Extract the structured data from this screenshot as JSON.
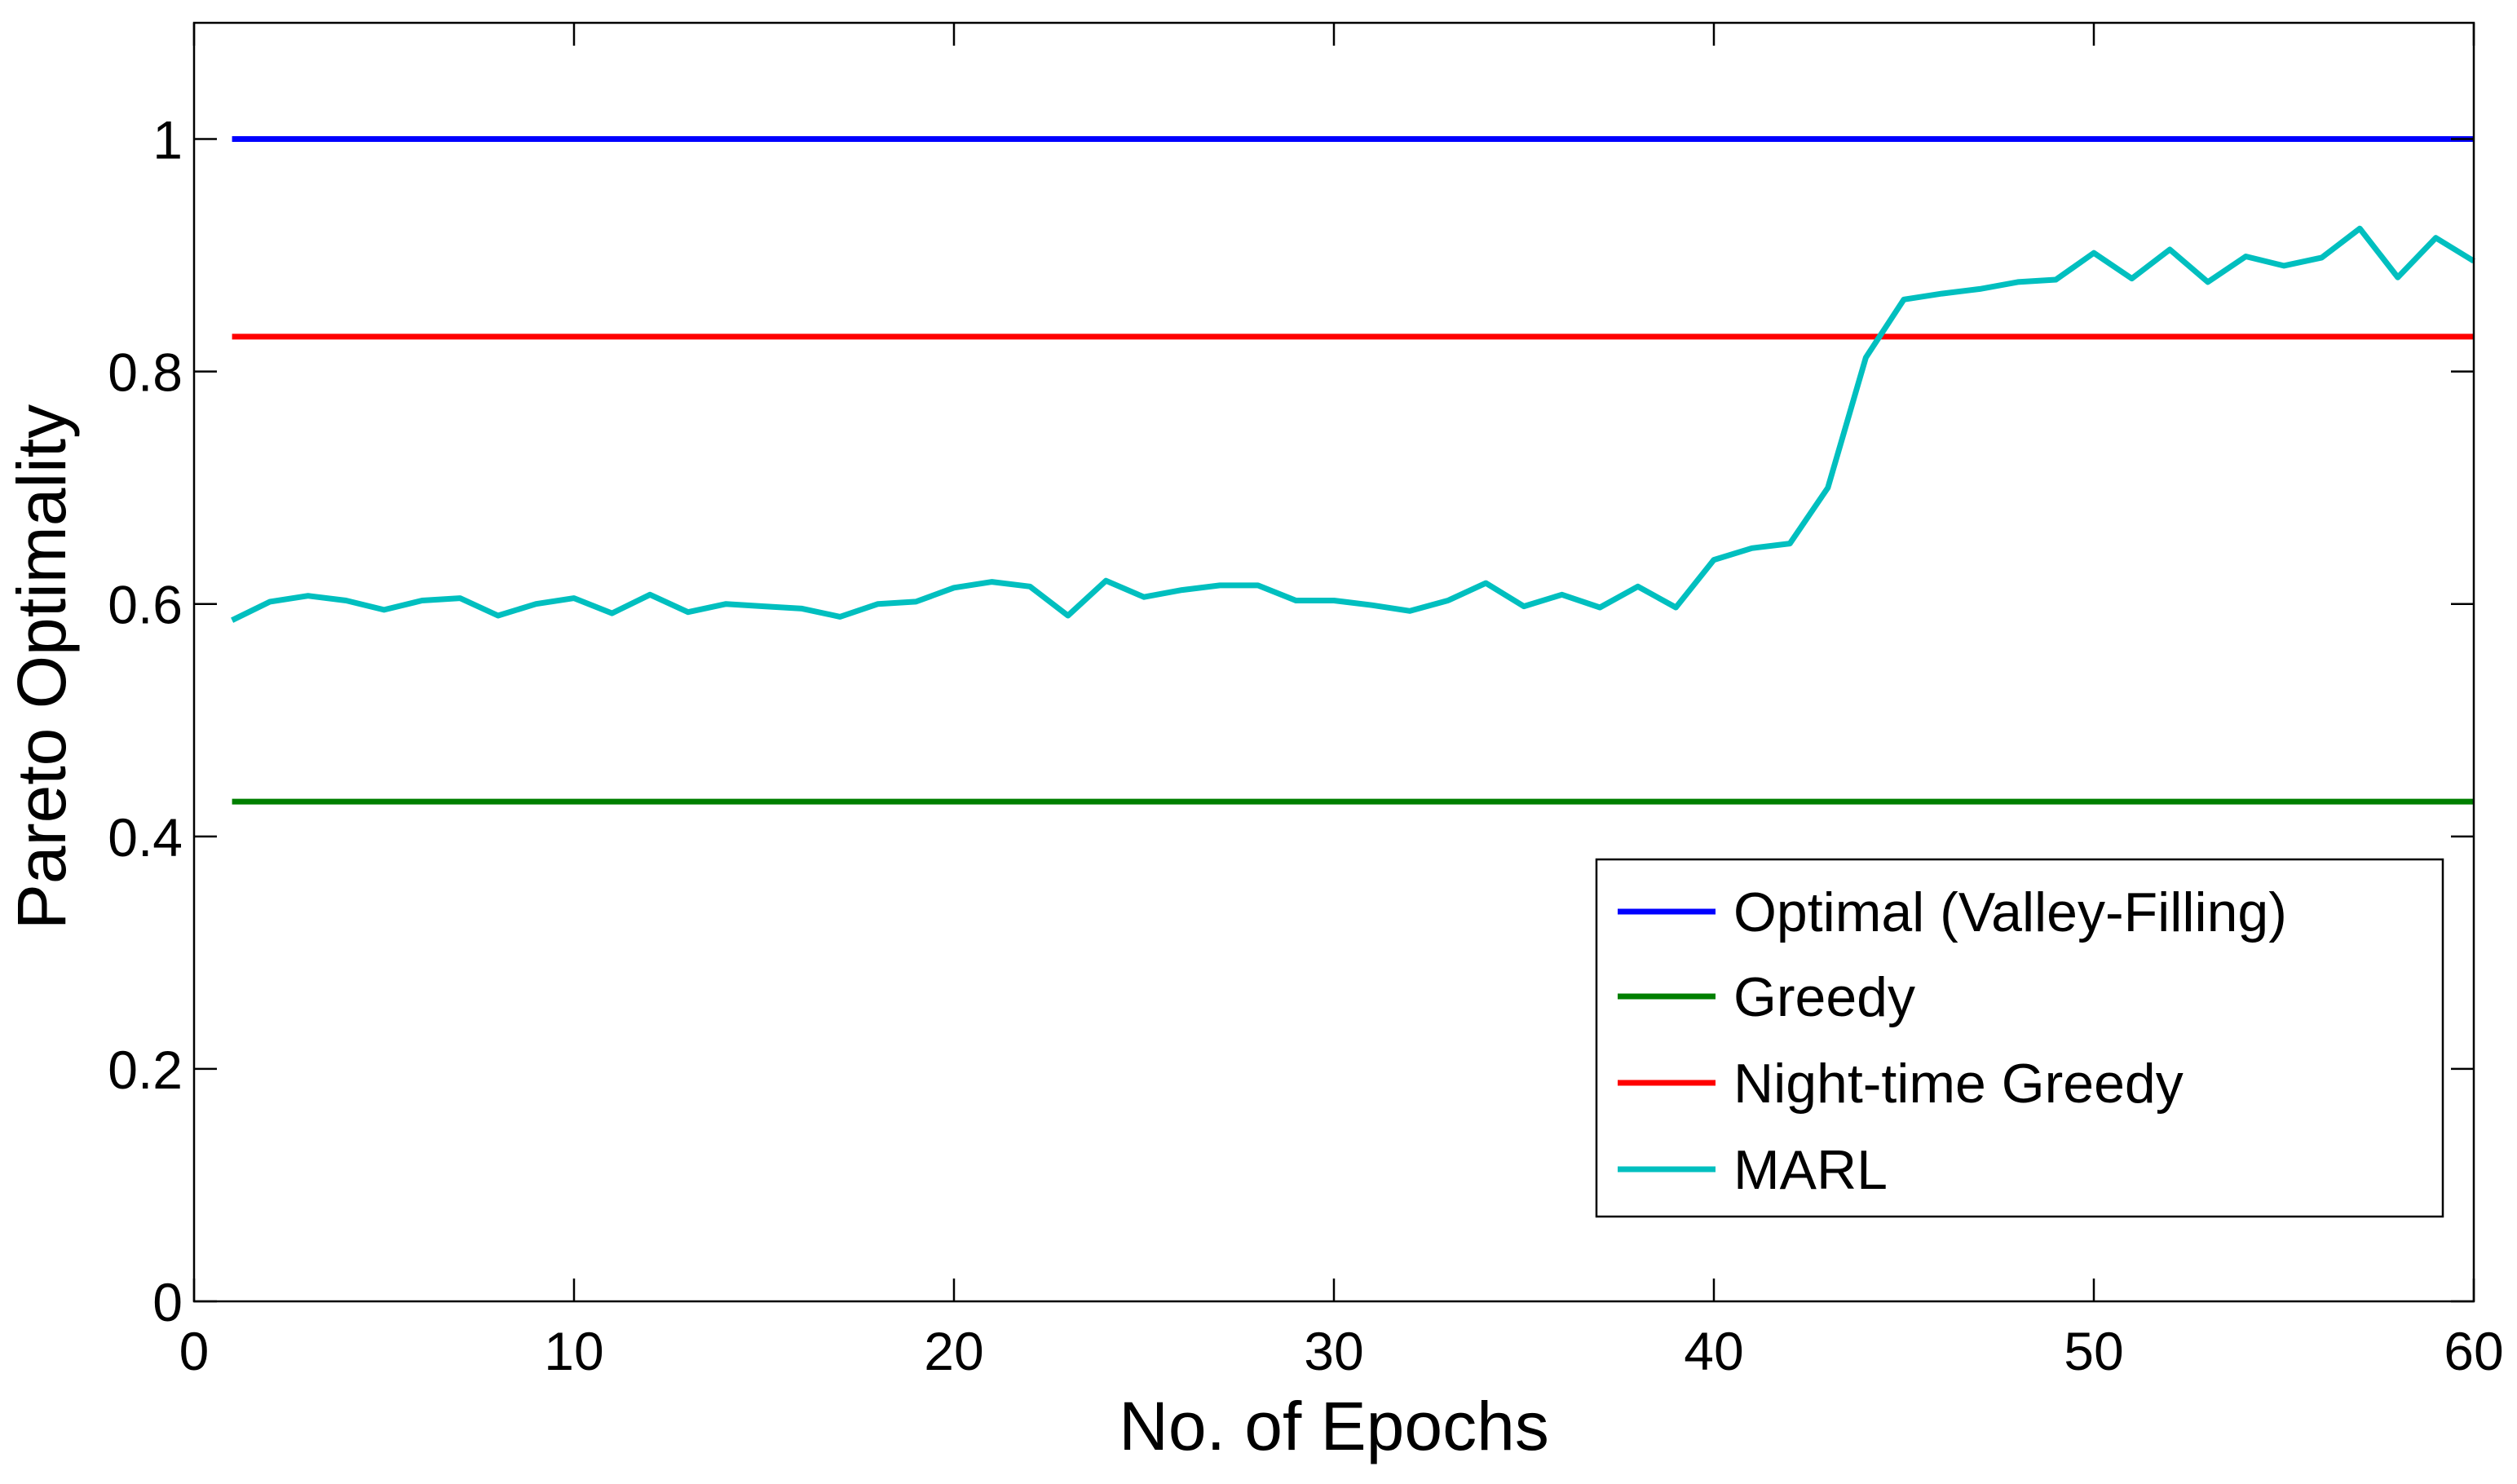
{
  "chart_data": {
    "type": "line",
    "title": "",
    "xlabel": "No. of Epochs",
    "ylabel": "Pareto Optimality",
    "xlim": [
      0,
      60
    ],
    "ylim": [
      0,
      1.1
    ],
    "xticks": [
      0,
      10,
      20,
      30,
      40,
      50,
      60
    ],
    "xtick_labels": [
      "0",
      "10",
      "20",
      "30",
      "40",
      "50",
      "60"
    ],
    "yticks": [
      0,
      0.2,
      0.4,
      0.6,
      0.8,
      1
    ],
    "ytick_labels": [
      "0",
      "0.2",
      "0.4",
      "0.6",
      "0.8",
      "1"
    ],
    "grid": false,
    "legend_position": "bottom-right",
    "series": [
      {
        "name": "Optimal (Valley-Filling)",
        "color": "#0000ff",
        "x": [
          1,
          60
        ],
        "y": [
          1.0,
          1.0
        ]
      },
      {
        "name": "Greedy",
        "color": "#007f00",
        "x": [
          1,
          60
        ],
        "y": [
          0.43,
          0.43
        ]
      },
      {
        "name": "Night-time Greedy",
        "color": "#ff0000",
        "x": [
          1,
          60
        ],
        "y": [
          0.83,
          0.83
        ]
      },
      {
        "name": "MARL",
        "color": "#00bfbf",
        "x": [
          1,
          2,
          3,
          4,
          5,
          6,
          7,
          8,
          9,
          10,
          11,
          12,
          13,
          14,
          15,
          16,
          17,
          18,
          19,
          20,
          21,
          22,
          23,
          24,
          25,
          26,
          27,
          28,
          29,
          30,
          31,
          32,
          33,
          34,
          35,
          36,
          37,
          38,
          39,
          40,
          41,
          42,
          43,
          44,
          45,
          46,
          47,
          48,
          49,
          50,
          51,
          52,
          53,
          54,
          55,
          56,
          57,
          58,
          59,
          60
        ],
        "y": [
          0.586,
          0.602,
          0.607,
          0.603,
          0.595,
          0.603,
          0.605,
          0.59,
          0.6,
          0.605,
          0.592,
          0.608,
          0.593,
          0.6,
          0.598,
          0.596,
          0.589,
          0.6,
          0.602,
          0.614,
          0.619,
          0.615,
          0.59,
          0.62,
          0.606,
          0.612,
          0.616,
          0.616,
          0.603,
          0.603,
          0.599,
          0.594,
          0.603,
          0.618,
          0.598,
          0.608,
          0.597,
          0.615,
          0.597,
          0.638,
          0.648,
          0.652,
          0.7,
          0.812,
          0.862,
          0.867,
          0.871,
          0.877,
          0.879,
          0.902,
          0.88,
          0.905,
          0.877,
          0.899,
          0.891,
          0.898,
          0.923,
          0.881,
          0.915,
          0.895
        ]
      }
    ]
  }
}
